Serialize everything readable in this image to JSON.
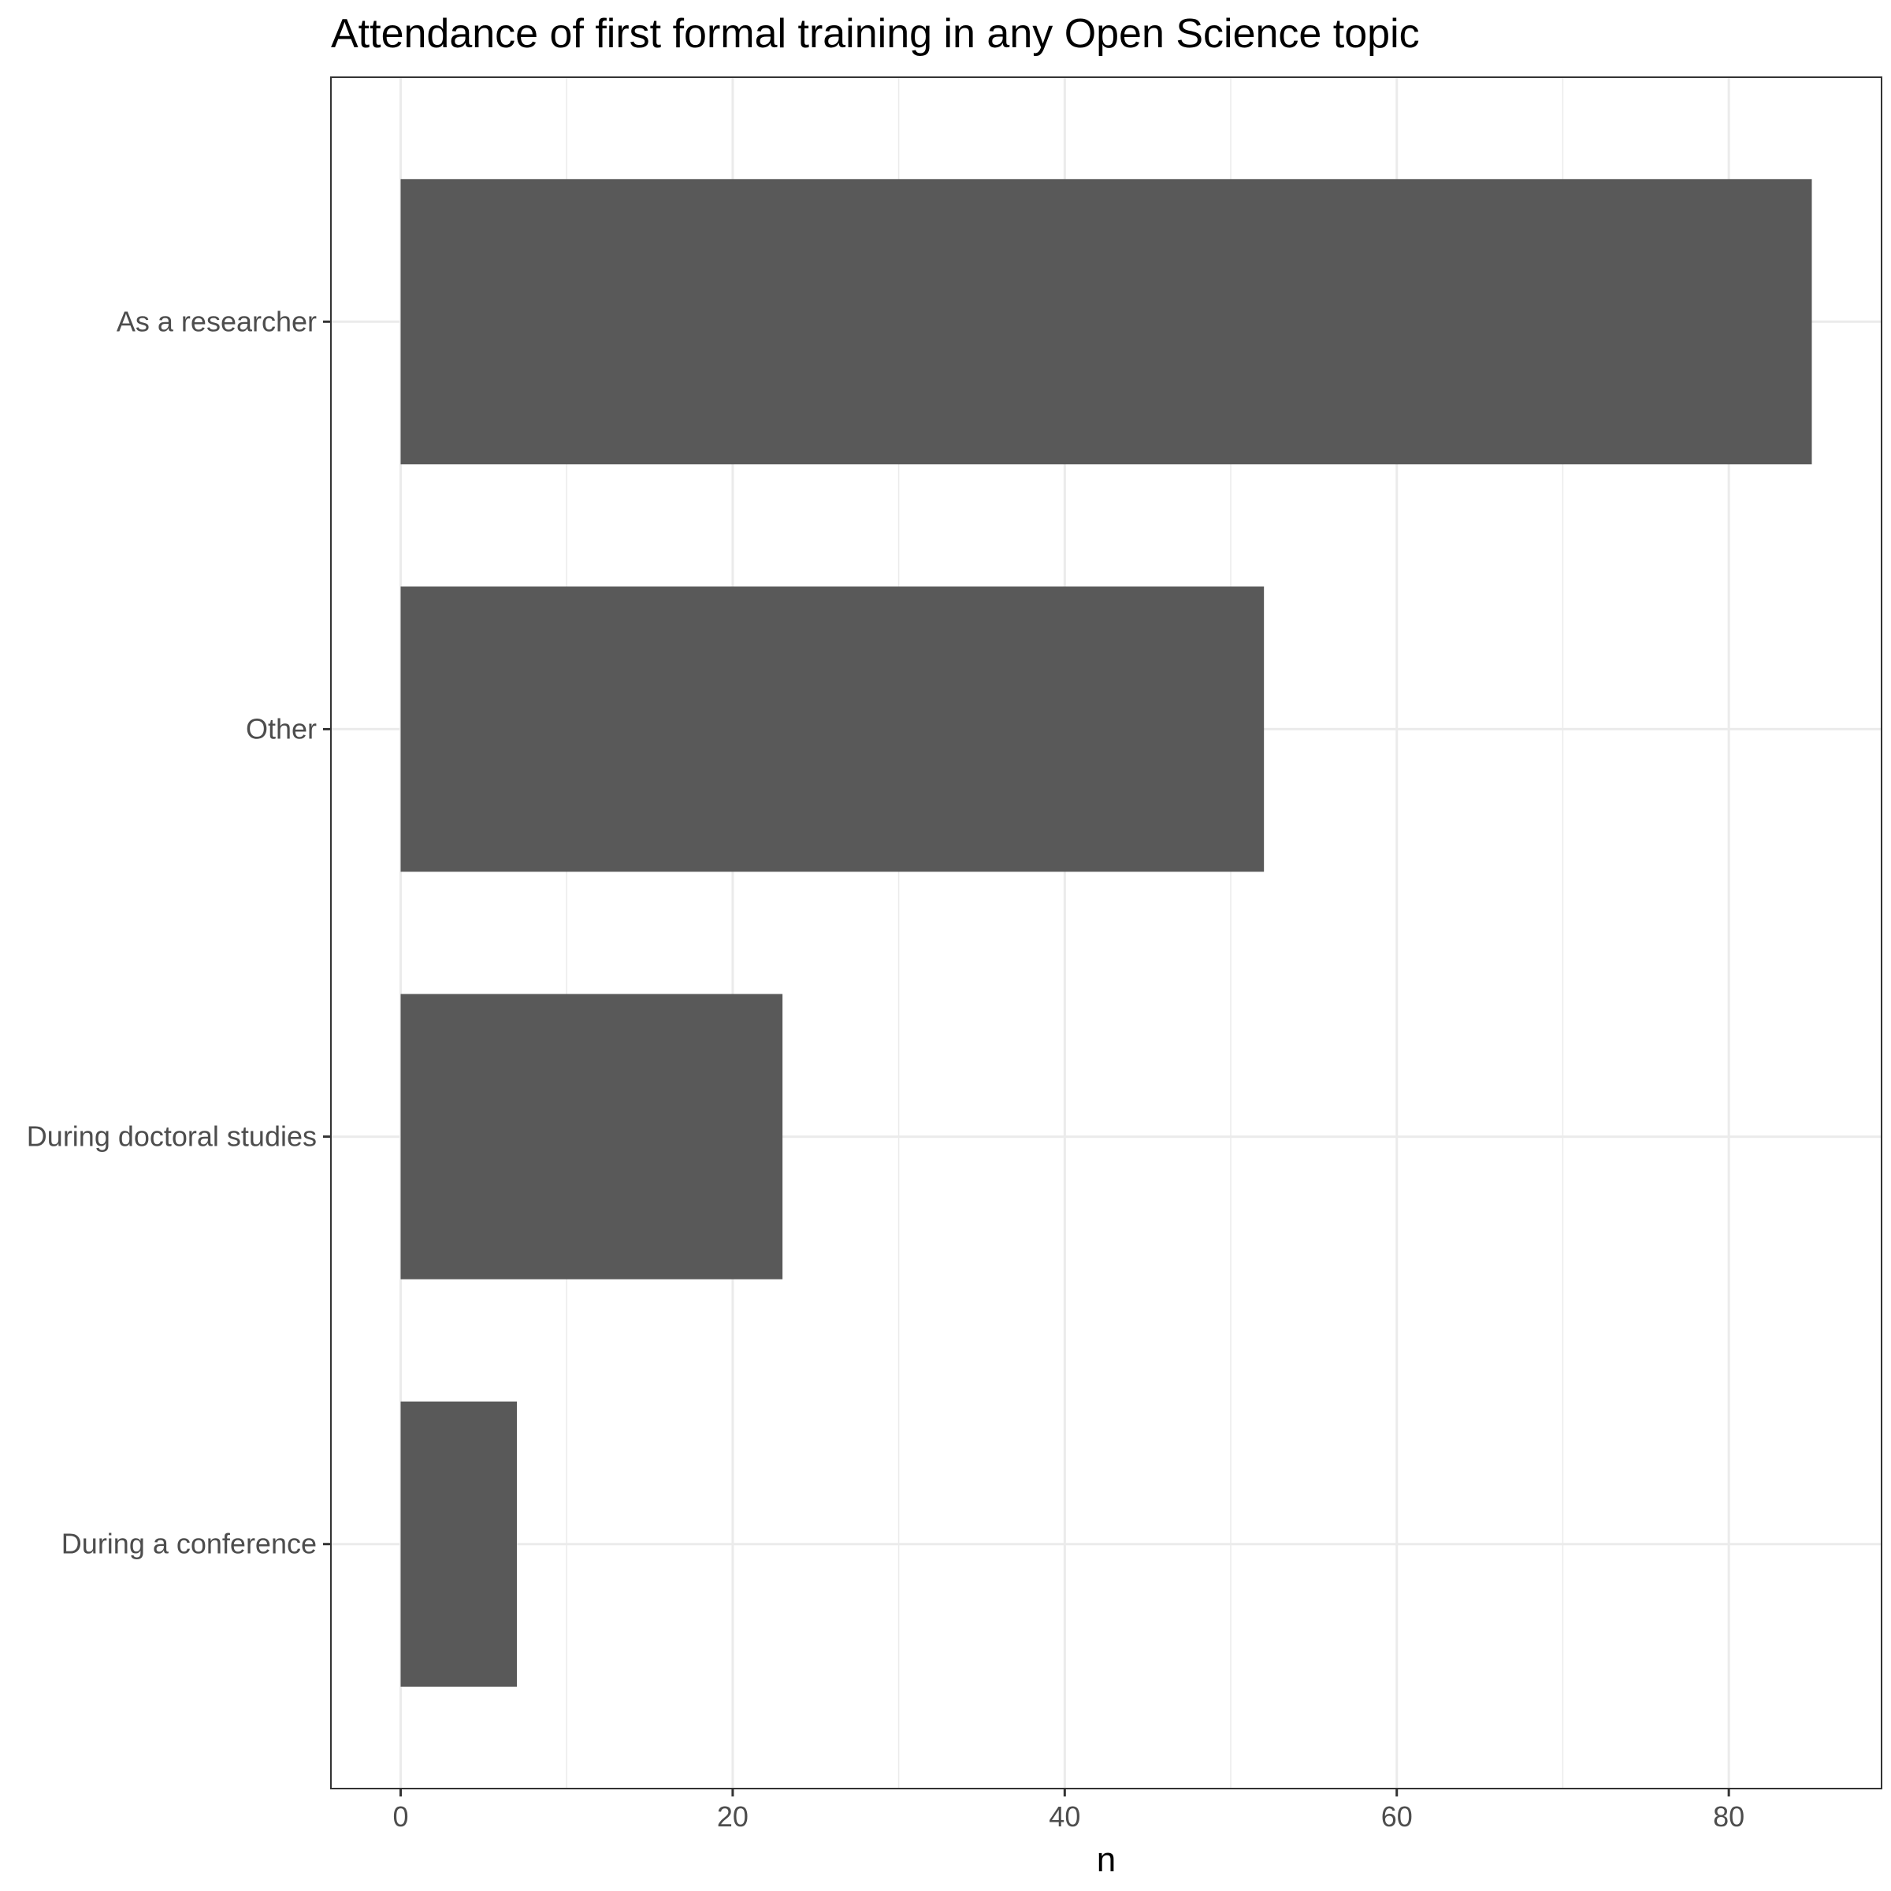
{
  "chart_data": {
    "type": "bar",
    "orientation": "horizontal",
    "title": "Attendance of first formal training in any Open Science topic",
    "xlabel": "n",
    "ylabel": "",
    "categories": [
      "As a researcher",
      "Other",
      "During doctoral studies",
      "During a conference"
    ],
    "values": [
      85,
      52,
      23,
      7
    ],
    "xlim": [
      -4.2,
      89.2
    ],
    "x_ticks": [
      0,
      20,
      40,
      60,
      80
    ],
    "x_tick_labels": [
      "0",
      "20",
      "40",
      "60",
      "80"
    ],
    "grid": true,
    "legend": "none",
    "colors": {
      "bar": "#595959",
      "grid": "#ebebeb",
      "panel_border": "#333333",
      "axis_text": "#4d4d4d"
    }
  }
}
